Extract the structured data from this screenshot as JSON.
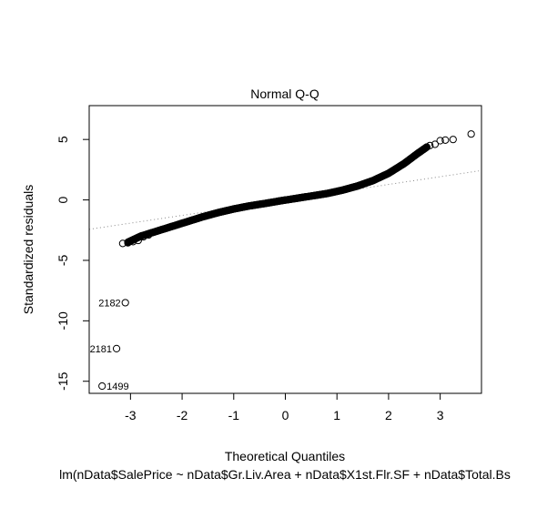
{
  "chart_data": {
    "type": "scatter",
    "title": "Normal Q-Q",
    "xlabel": "Theoretical Quantiles",
    "ylabel": "Standardized residuals",
    "subtitle": "lm(nData$SalePrice ~ nData$Gr.Liv.Area + nData$X1st.Flr.SF + nData$Total.Bs",
    "xlim": [
      -3.8,
      3.8
    ],
    "ylim": [
      -16,
      7.8
    ],
    "xticks": [
      -3,
      -2,
      -1,
      0,
      1,
      2,
      3
    ],
    "yticks": [
      -15,
      -10,
      -5,
      0,
      5
    ],
    "grid": false,
    "reference_line": {
      "intercept": 0.0,
      "slope": 0.64,
      "style": "dotted",
      "color": "#888888"
    },
    "curve_points": [
      {
        "x": -3.05,
        "y": -3.5
      },
      {
        "x": -2.8,
        "y": -3.0
      },
      {
        "x": -2.5,
        "y": -2.6
      },
      {
        "x": -2.2,
        "y": -2.2
      },
      {
        "x": -1.9,
        "y": -1.8
      },
      {
        "x": -1.6,
        "y": -1.4
      },
      {
        "x": -1.3,
        "y": -1.05
      },
      {
        "x": -1.0,
        "y": -0.75
      },
      {
        "x": -0.7,
        "y": -0.5
      },
      {
        "x": -0.4,
        "y": -0.3
      },
      {
        "x": -0.1,
        "y": -0.08
      },
      {
        "x": 0.2,
        "y": 0.12
      },
      {
        "x": 0.5,
        "y": 0.32
      },
      {
        "x": 0.8,
        "y": 0.52
      },
      {
        "x": 1.1,
        "y": 0.8
      },
      {
        "x": 1.4,
        "y": 1.15
      },
      {
        "x": 1.7,
        "y": 1.6
      },
      {
        "x": 2.0,
        "y": 2.2
      },
      {
        "x": 2.3,
        "y": 3.0
      },
      {
        "x": 2.55,
        "y": 3.8
      },
      {
        "x": 2.75,
        "y": 4.4
      }
    ],
    "tail_points": [
      {
        "x": -3.15,
        "y": -3.6
      },
      {
        "x": -3.05,
        "y": -3.55
      },
      {
        "x": -2.95,
        "y": -3.45
      },
      {
        "x": -2.85,
        "y": -3.35
      },
      {
        "x": -2.75,
        "y": -3.05
      },
      {
        "x": -2.65,
        "y": -2.9
      },
      {
        "x": 2.8,
        "y": 4.5
      },
      {
        "x": 2.9,
        "y": 4.6
      },
      {
        "x": 3.0,
        "y": 4.9
      },
      {
        "x": 3.1,
        "y": 4.95
      },
      {
        "x": 3.25,
        "y": 5.0
      },
      {
        "x": 3.6,
        "y": 5.45
      }
    ],
    "labeled_outliers": [
      {
        "label": "2182",
        "x": -3.1,
        "y": -8.5
      },
      {
        "label": "2181",
        "x": -3.27,
        "y": -12.3
      },
      {
        "label": "1499",
        "x": -3.55,
        "y": -15.4
      }
    ]
  }
}
